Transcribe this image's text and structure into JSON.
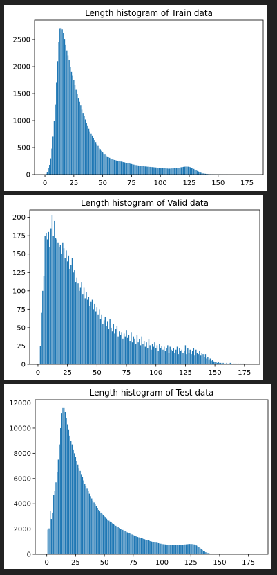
{
  "chart_data": [
    {
      "type": "bar",
      "title": "Length histogram of Train data",
      "xlabel": "",
      "ylabel": "",
      "xlim": [
        -9,
        189
      ],
      "ylim": [
        0,
        2860
      ],
      "xticks": [
        0,
        25,
        50,
        75,
        100,
        125,
        150,
        175
      ],
      "yticks": [
        0,
        500,
        1000,
        1500,
        2000,
        2500
      ],
      "color": "#1f77b4",
      "bar_width": 0.8,
      "x_start": 1,
      "values": [
        15,
        40,
        120,
        180,
        300,
        480,
        700,
        1000,
        1300,
        1700,
        2100,
        2450,
        2700,
        2720,
        2690,
        2620,
        2500,
        2400,
        2300,
        2200,
        2120,
        2000,
        1900,
        1840,
        1750,
        1660,
        1570,
        1490,
        1410,
        1350,
        1280,
        1200,
        1140,
        1080,
        1020,
        960,
        900,
        850,
        800,
        760,
        720,
        680,
        640,
        600,
        560,
        530,
        500,
        470,
        440,
        410,
        390,
        370,
        350,
        335,
        320,
        310,
        300,
        290,
        280,
        270,
        265,
        260,
        255,
        250,
        245,
        240,
        235,
        230,
        225,
        220,
        215,
        210,
        205,
        200,
        195,
        190,
        185,
        180,
        175,
        172,
        168,
        165,
        160,
        158,
        155,
        152,
        150,
        148,
        146,
        144,
        142,
        140,
        138,
        136,
        134,
        132,
        130,
        128,
        126,
        124,
        122,
        120,
        118,
        116,
        114,
        112,
        110,
        110,
        112,
        114,
        116,
        118,
        120,
        122,
        125,
        128,
        132,
        136,
        140,
        143,
        146,
        148,
        148,
        146,
        142,
        136,
        128,
        118,
        105,
        92,
        80,
        68,
        56,
        45,
        36,
        28,
        22,
        18,
        15,
        12,
        10,
        8,
        7,
        6,
        5,
        5,
        4,
        4,
        3,
        3,
        3,
        3,
        2,
        2,
        2,
        2,
        2,
        2,
        1,
        1,
        1,
        1,
        1,
        1,
        1,
        1,
        1,
        1,
        1,
        1,
        1,
        1,
        1,
        1,
        1,
        1,
        1,
        1,
        1,
        1,
        1,
        1,
        1,
        1,
        1,
        1,
        1,
        1
      ]
    },
    {
      "type": "bar",
      "title": "Length histogram of Valid data",
      "xlabel": "",
      "ylabel": "",
      "xlim": [
        -7,
        188
      ],
      "ylim": [
        0,
        210
      ],
      "xticks": [
        0,
        25,
        50,
        75,
        100,
        125,
        150,
        175
      ],
      "yticks": [
        0,
        25,
        50,
        75,
        100,
        125,
        150,
        175,
        200
      ],
      "color": "#1f77b4",
      "bar_width": 0.8,
      "x_start": 2,
      "values": [
        25,
        70,
        100,
        120,
        175,
        178,
        170,
        180,
        160,
        185,
        203,
        175,
        195,
        172,
        170,
        165,
        160,
        162,
        150,
        165,
        158,
        145,
        155,
        140,
        148,
        130,
        135,
        145,
        125,
        128,
        112,
        118,
        110,
        100,
        105,
        112,
        95,
        105,
        90,
        98,
        88,
        92,
        80,
        85,
        88,
        75,
        82,
        72,
        78,
        68,
        75,
        62,
        68,
        55,
        60,
        65,
        52,
        58,
        48,
        62,
        50,
        45,
        55,
        42,
        48,
        52,
        38,
        45,
        40,
        44,
        35,
        42,
        38,
        46,
        36,
        40,
        32,
        44,
        30,
        38,
        35,
        28,
        40,
        30,
        34,
        26,
        38,
        28,
        32,
        24,
        30,
        22,
        34,
        26,
        20,
        28,
        24,
        30,
        22,
        26,
        18,
        28,
        22,
        25,
        20,
        24,
        18,
        22,
        26,
        16,
        24,
        20,
        18,
        22,
        16,
        20,
        24,
        14,
        22,
        18,
        20,
        16,
        18,
        26,
        14,
        22,
        16,
        20,
        14,
        18,
        22,
        12,
        20,
        16,
        14,
        18,
        12,
        16,
        14,
        10,
        14,
        8,
        10,
        6,
        8,
        5,
        6,
        4,
        3,
        3,
        2,
        3,
        2,
        2,
        1,
        2,
        1,
        1,
        2,
        1,
        1,
        2,
        1,
        0,
        1,
        1,
        1,
        0,
        1,
        0,
        1,
        0,
        1
      ]
    },
    {
      "type": "bar",
      "title": "Length histogram of Test data",
      "xlabel": "",
      "ylabel": "",
      "xlim": [
        -10,
        192
      ],
      "ylim": [
        0,
        12250
      ],
      "xticks": [
        0,
        25,
        50,
        75,
        100,
        125,
        150,
        175
      ],
      "yticks": [
        0,
        2000,
        4000,
        6000,
        8000,
        10000,
        12000
      ],
      "color": "#1f77b4",
      "bar_width": 0.8,
      "x_start": 1,
      "values": [
        1950,
        2050,
        3450,
        2800,
        3300,
        4700,
        5000,
        5700,
        6500,
        7500,
        8700,
        10000,
        11200,
        11600,
        11600,
        11300,
        10800,
        10300,
        9900,
        9400,
        9000,
        8700,
        8300,
        8000,
        7700,
        7400,
        7100,
        6800,
        6600,
        6350,
        6100,
        5850,
        5600,
        5400,
        5200,
        5000,
        4800,
        4600,
        4420,
        4250,
        4100,
        3950,
        3800,
        3650,
        3520,
        3400,
        3300,
        3200,
        3100,
        3000,
        2900,
        2820,
        2740,
        2660,
        2590,
        2520,
        2450,
        2380,
        2320,
        2260,
        2200,
        2140,
        2080,
        2030,
        1980,
        1930,
        1880,
        1830,
        1780,
        1730,
        1690,
        1650,
        1610,
        1570,
        1530,
        1490,
        1450,
        1410,
        1370,
        1340,
        1310,
        1280,
        1250,
        1220,
        1190,
        1160,
        1130,
        1100,
        1070,
        1040,
        1010,
        980,
        960,
        940,
        920,
        900,
        880,
        860,
        840,
        820,
        800,
        790,
        780,
        770,
        760,
        750,
        745,
        740,
        735,
        730,
        725,
        720,
        720,
        725,
        730,
        740,
        750,
        760,
        770,
        780,
        790,
        800,
        810,
        815,
        815,
        810,
        800,
        780,
        750,
        700,
        640,
        570,
        500,
        420,
        340,
        270,
        210,
        160,
        120,
        90,
        70,
        50,
        40,
        30,
        25,
        20,
        15,
        12,
        10,
        8,
        6,
        5,
        4,
        3,
        3,
        2,
        2,
        2,
        1,
        1,
        1,
        1,
        1,
        1,
        1,
        1,
        1,
        1,
        1,
        1,
        1,
        1,
        1,
        1,
        1,
        1,
        1,
        1,
        1,
        1,
        1,
        1
      ]
    }
  ]
}
